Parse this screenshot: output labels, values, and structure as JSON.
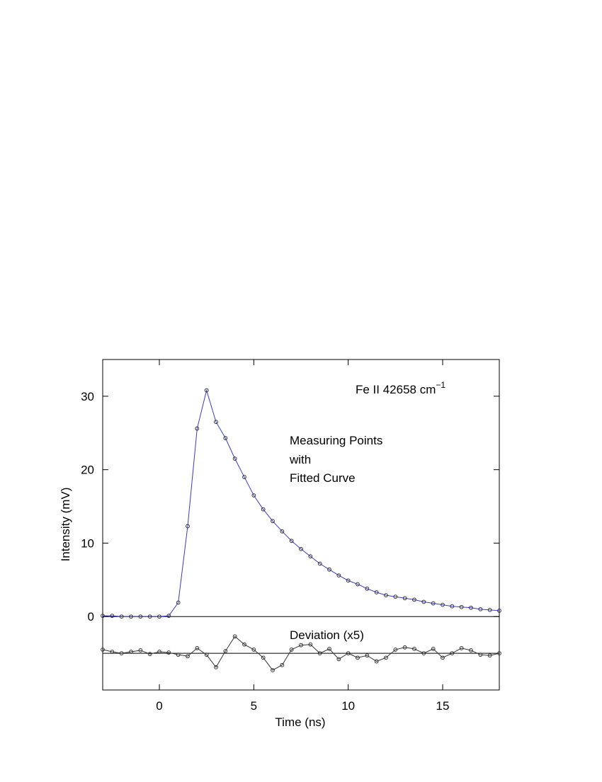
{
  "chart_data": {
    "type": "line",
    "axis_label_x": "Time (ns)",
    "axis_label_y": "Intensity (mV)",
    "label_text": "Fe II  42658 cm",
    "label_superscript": "−1",
    "annotations": [
      "Measuring Points",
      "with",
      "Fitted Curve",
      "Deviation (x5)"
    ],
    "x": [
      -3,
      -2.5,
      -2,
      -1.5,
      -1,
      -0.5,
      0,
      0.5,
      1,
      1.5,
      2,
      2.5,
      3,
      3.5,
      4,
      4.5,
      5,
      5.5,
      6,
      6.5,
      7,
      7.5,
      8,
      8.5,
      9,
      9.5,
      10,
      10.5,
      11,
      11.5,
      12,
      12.5,
      13,
      13.5,
      14,
      14.5,
      15,
      15.5,
      16,
      16.5,
      17,
      17.5,
      18
    ],
    "series": [
      {
        "name": "Fitted Curve",
        "color": "#3a3acc",
        "style": "line",
        "values": [
          0.1,
          0.1,
          0,
          0,
          0,
          0,
          0,
          0.1,
          1.9,
          12.3,
          25.6,
          30.8,
          26.5,
          24.3,
          21.5,
          19.0,
          16.5,
          14.6,
          13.0,
          11.6,
          10.3,
          9.2,
          8.2,
          7.2,
          6.4,
          5.6,
          4.9,
          4.4,
          3.8,
          3.3,
          2.9,
          2.7,
          2.5,
          2.3,
          2.0,
          1.8,
          1.6,
          1.4,
          1.3,
          1.2,
          1.0,
          0.9,
          0.8
        ]
      },
      {
        "name": "Measuring Points",
        "color": "#333333",
        "style": "markers",
        "values": [
          0.1,
          0.1,
          0,
          0,
          0,
          0,
          0,
          0.1,
          1.9,
          12.3,
          25.6,
          30.8,
          26.5,
          24.3,
          21.5,
          19.0,
          16.5,
          14.6,
          13.0,
          11.6,
          10.3,
          9.2,
          8.2,
          7.2,
          6.4,
          5.6,
          4.9,
          4.4,
          3.8,
          3.3,
          2.9,
          2.7,
          2.5,
          2.3,
          2.0,
          1.8,
          1.6,
          1.4,
          1.3,
          1.2,
          1.0,
          0.9,
          0.8
        ]
      },
      {
        "name": "Deviation (x5)",
        "color": "#333333",
        "style": "line+markers",
        "values": [
          -4.5,
          -4.8,
          -5.0,
          -4.8,
          -4.6,
          -5.1,
          -4.8,
          -4.9,
          -5.2,
          -5.4,
          -4.3,
          -5.2,
          -6.9,
          -4.7,
          -2.7,
          -3.8,
          -4.5,
          -5.6,
          -7.3,
          -6.6,
          -4.5,
          -3.9,
          -3.8,
          -5.0,
          -4.4,
          -5.8,
          -5.0,
          -5.6,
          -5.3,
          -6.1,
          -5.6,
          -4.5,
          -4.2,
          -4.4,
          -5.0,
          -4.4,
          -5.6,
          -5.0,
          -4.3,
          -4.6,
          -5.2,
          -5.3,
          -5.0
        ]
      }
    ],
    "reference_lines": [
      0,
      -5
    ],
    "xlim": [
      -3,
      18
    ],
    "xticks": [
      0,
      5,
      10,
      15
    ],
    "ylim": [
      -10,
      35
    ],
    "yticks": [
      0,
      10,
      20,
      30
    ]
  }
}
